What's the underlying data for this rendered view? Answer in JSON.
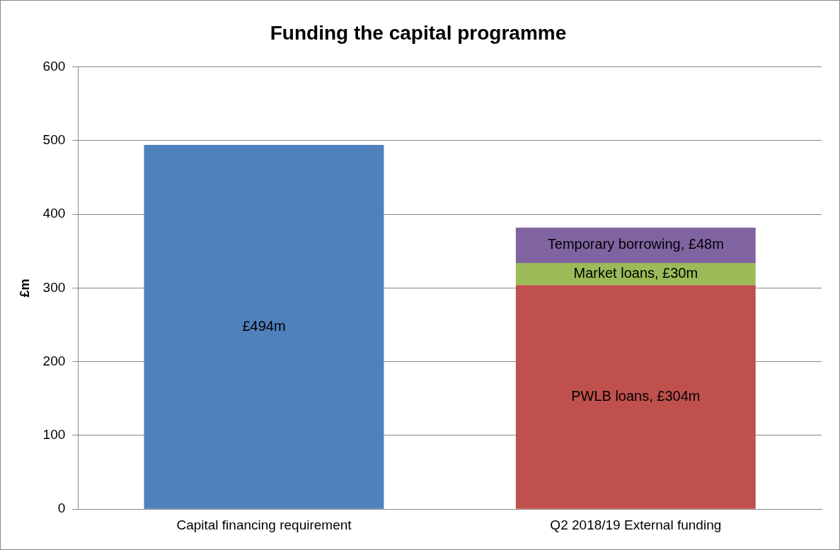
{
  "chart_data": {
    "type": "bar",
    "title": "Funding the capital programme",
    "ylabel": "£m",
    "categories": [
      "Capital financing requirement",
      "Q2 2018/19 External funding"
    ],
    "stacked": true,
    "series": [
      {
        "color": "#4f81bd",
        "values": [
          494,
          null
        ],
        "value_labels": [
          "£494m",
          null
        ]
      },
      {
        "color": "#c0504d",
        "values": [
          null,
          304
        ],
        "value_labels": [
          null,
          "PWLB loans, £304m"
        ]
      },
      {
        "color": "#9bbb59",
        "values": [
          null,
          30
        ],
        "value_labels": [
          null,
          "Market loans, £30m"
        ]
      },
      {
        "color": "#8064a2",
        "values": [
          null,
          48
        ],
        "value_labels": [
          null,
          "Temporary borrowing, £48m"
        ]
      }
    ],
    "ylim": [
      0,
      600
    ],
    "yticks": [
      0,
      100,
      200,
      300,
      400,
      500,
      600
    ],
    "grid": "y",
    "legend": false
  }
}
